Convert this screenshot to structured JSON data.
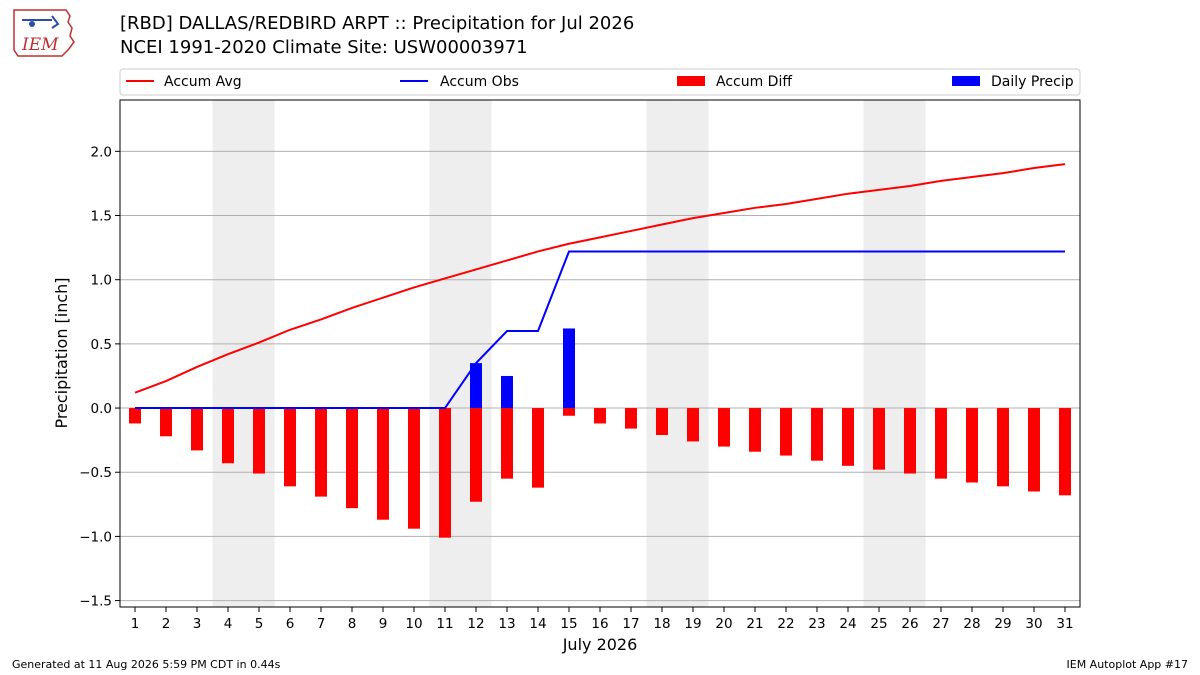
{
  "header": {
    "title_line1": "[RBD] DALLAS/REDBIRD ARPT :: Precipitation for Jul 2026",
    "title_line2": "NCEI 1991-2020 Climate Site: USW00003971"
  },
  "logo": {
    "text": "IEM",
    "icon": "iem-logo-icon"
  },
  "footer": {
    "left": "Generated at 11 Aug 2026 5:59 PM CDT in 0.44s",
    "right": "IEM Autoplot App #17"
  },
  "chart_data": {
    "type": "bar",
    "xlabel": "July 2026",
    "ylabel": "Precipitation [inch]",
    "ylim": [
      -1.55,
      2.4
    ],
    "yticks": [
      -1.5,
      -1.0,
      -0.5,
      0.0,
      0.5,
      1.0,
      1.5,
      2.0
    ],
    "ytick_labels": [
      "−1.5",
      "−1.0",
      "−0.5",
      "0.0",
      "0.5",
      "1.0",
      "1.5",
      "2.0"
    ],
    "grid": "horizontal",
    "legend_position": "top",
    "categories": [
      "1",
      "2",
      "3",
      "4",
      "5",
      "6",
      "7",
      "8",
      "9",
      "10",
      "11",
      "12",
      "13",
      "14",
      "15",
      "16",
      "17",
      "18",
      "19",
      "20",
      "21",
      "22",
      "23",
      "24",
      "25",
      "26",
      "27",
      "28",
      "29",
      "30",
      "31"
    ],
    "shaded_days": [
      [
        4,
        5
      ],
      [
        11,
        12
      ],
      [
        18,
        19
      ],
      [
        25,
        26
      ]
    ],
    "series": [
      {
        "name": "Accum Avg",
        "type": "line",
        "color": "#ff0000",
        "values": [
          0.12,
          0.21,
          0.32,
          0.42,
          0.51,
          0.61,
          0.69,
          0.78,
          0.86,
          0.94,
          1.01,
          1.08,
          1.15,
          1.22,
          1.28,
          1.33,
          1.38,
          1.43,
          1.48,
          1.52,
          1.56,
          1.59,
          1.63,
          1.67,
          1.7,
          1.73,
          1.77,
          1.8,
          1.83,
          1.87,
          1.9
        ]
      },
      {
        "name": "Accum Obs",
        "type": "line",
        "color": "#0000ff",
        "values": [
          0,
          0,
          0,
          0,
          0,
          0,
          0,
          0,
          0,
          0,
          0,
          0.35,
          0.6,
          0.6,
          1.22,
          1.22,
          1.22,
          1.22,
          1.22,
          1.22,
          1.22,
          1.22,
          1.22,
          1.22,
          1.22,
          1.22,
          1.22,
          1.22,
          1.22,
          1.22,
          1.22
        ]
      },
      {
        "name": "Accum Diff",
        "type": "bar",
        "color": "#ff0000",
        "values": [
          -0.12,
          -0.22,
          -0.33,
          -0.43,
          -0.51,
          -0.61,
          -0.69,
          -0.78,
          -0.87,
          -0.94,
          -1.01,
          -0.73,
          -0.55,
          -0.62,
          -0.06,
          -0.12,
          -0.16,
          -0.21,
          -0.26,
          -0.3,
          -0.34,
          -0.37,
          -0.41,
          -0.45,
          -0.48,
          -0.51,
          -0.55,
          -0.58,
          -0.61,
          -0.65,
          -0.68
        ]
      },
      {
        "name": "Daily Precip",
        "type": "bar",
        "color": "#0000ff",
        "values": [
          0,
          0,
          0,
          0,
          0,
          0,
          0,
          0,
          0,
          0,
          0,
          0.35,
          0.25,
          0,
          0.62,
          0,
          0,
          0,
          0,
          0,
          0,
          0,
          0,
          0,
          0,
          0,
          0,
          0,
          0,
          0,
          0
        ]
      }
    ]
  }
}
